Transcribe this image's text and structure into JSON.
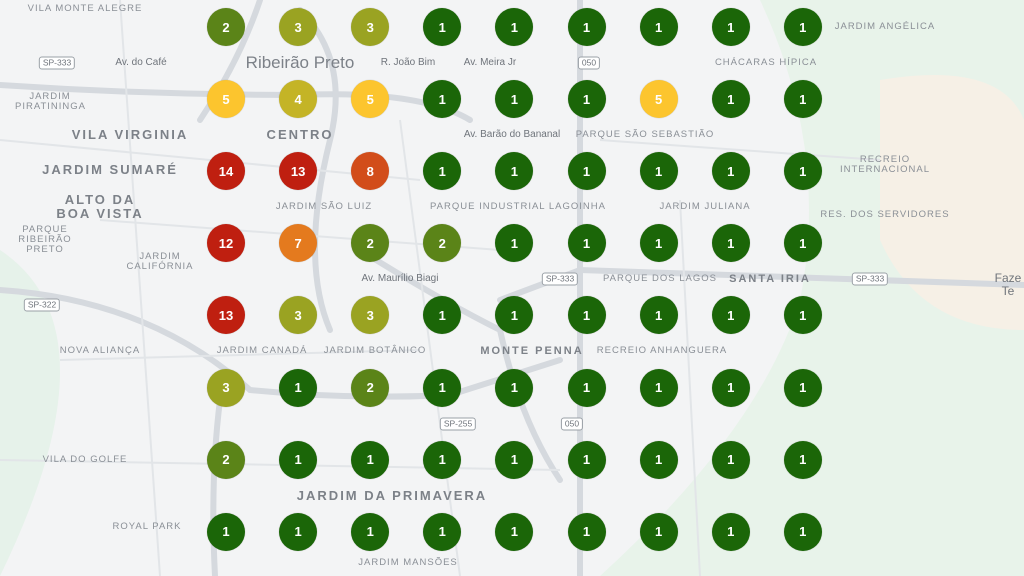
{
  "map": {
    "place_labels": [
      "Vila Monte Alegre",
      "Ribeirão Preto",
      "Av. do Café",
      "Centro",
      "Vila Virginia",
      "Jardim Piratininga",
      "Jardim Sumaré",
      "Jardim São Luiz",
      "Alto da Boa Vista",
      "Parque Ribeirão Preto",
      "Jardim Califórnia",
      "Nova Aliança",
      "Jardim Canadá",
      "Jardim Botânico",
      "Vila do Golfe",
      "Royal Park",
      "Jardim da Primavera",
      "Jardim Mansões",
      "R. João Bim",
      "Av. Barão do Bananal",
      "Parque São Sebastião",
      "Chácaras Hípica",
      "Jardim Angélica",
      "Jardim Juliana",
      "Recreio Internacional",
      "Res. Dos Servidores",
      "Parque Industrial Lagoinha",
      "Parque dos Lagos",
      "Santa Iria",
      "Recreio Anhanguera",
      "Monte Penna",
      "Faze Te",
      "Av. Meira Jr",
      "Av. Maurílio Biagi"
    ],
    "road_shields": [
      "SP-333",
      "SP-322",
      "050",
      "SP-333",
      "SP-333",
      "050",
      "SP-255"
    ]
  },
  "clusters": {
    "grid": [
      [
        2,
        3,
        3,
        1,
        1,
        1,
        1,
        1,
        1
      ],
      [
        5,
        4,
        5,
        1,
        1,
        1,
        5,
        1,
        1
      ],
      [
        14,
        13,
        8,
        1,
        1,
        1,
        1,
        1,
        1
      ],
      [
        12,
        7,
        2,
        2,
        1,
        1,
        1,
        1,
        1
      ],
      [
        13,
        3,
        3,
        1,
        1,
        1,
        1,
        1,
        1
      ],
      [
        3,
        1,
        2,
        1,
        1,
        1,
        1,
        1,
        1
      ],
      [
        2,
        1,
        1,
        1,
        1,
        1,
        1,
        1,
        1
      ],
      [
        1,
        1,
        1,
        1,
        1,
        1,
        1,
        1,
        1
      ]
    ],
    "colors": {
      "1": "#1b6608",
      "2": "#5b8418",
      "3": "#9aa322",
      "4": "#c4b426",
      "5": "#fcc52e",
      "7": "#e47a1e",
      "8": "#d24d1a",
      "12": "#bf1f10",
      "13": "#bf1f10",
      "14": "#bf1f10"
    }
  }
}
